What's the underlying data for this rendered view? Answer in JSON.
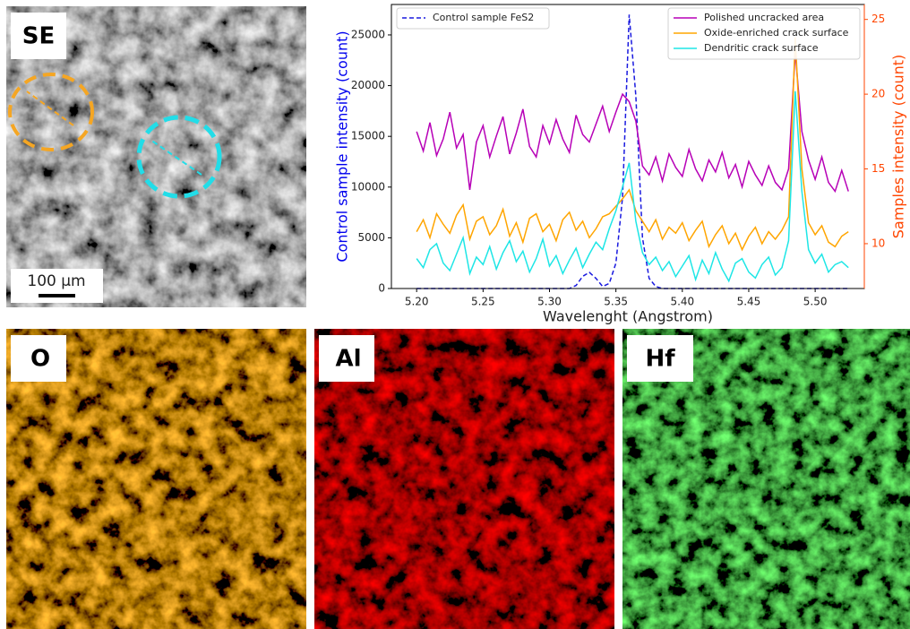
{
  "images": [
    {
      "label": "SE",
      "scale_bar": "100 µm"
    },
    {
      "label": "O"
    },
    {
      "label": "Al"
    },
    {
      "label": "Hf"
    }
  ],
  "chart_data": {
    "type": "line",
    "xlabel": "Wavelenght (Angstrom)",
    "ylabel": "Control sample intensity (count)",
    "y2label": "Samples intensity (count)",
    "y_axis_color": "#0000ee",
    "y2_axis_color": "#ff4500",
    "xlim": [
      5.181,
      5.537
    ],
    "ylim": [
      0,
      28000
    ],
    "y2lim": [
      7,
      26
    ],
    "xticks": [
      {
        "value": 5.2,
        "label": "5.20"
      },
      5.25,
      {
        "value": 5.3,
        "label": "5.30"
      },
      5.35,
      {
        "value": 5.4,
        "label": "5.40"
      },
      5.45,
      {
        "value": 5.5,
        "label": "5.50"
      }
    ],
    "yticks": [
      0,
      5000,
      10000,
      15000,
      20000,
      25000
    ],
    "y2ticks": [
      10,
      15,
      20,
      25
    ],
    "x": [
      5.2,
      5.205,
      5.21,
      5.215,
      5.22,
      5.225,
      5.23,
      5.235,
      5.24,
      5.245,
      5.25,
      5.255,
      5.26,
      5.265,
      5.27,
      5.275,
      5.28,
      5.285,
      5.29,
      5.295,
      5.3,
      5.305,
      5.31,
      5.315,
      5.32,
      5.325,
      5.33,
      5.335,
      5.34,
      5.345,
      5.35,
      5.355,
      5.36,
      5.365,
      5.37,
      5.375,
      5.38,
      5.385,
      5.39,
      5.395,
      5.4,
      5.405,
      5.41,
      5.415,
      5.42,
      5.425,
      5.43,
      5.435,
      5.44,
      5.445,
      5.45,
      5.455,
      5.46,
      5.465,
      5.47,
      5.475,
      5.48,
      5.485,
      5.49,
      5.495,
      5.5,
      5.505,
      5.51,
      5.515,
      5.52,
      5.525
    ],
    "series": [
      {
        "name": "Control sample FeS2",
        "color": "#1a1adf",
        "dashed": true,
        "values": [
          0,
          0,
          0,
          0,
          0,
          0,
          0,
          0,
          0,
          0,
          0,
          0,
          0,
          0,
          0,
          0,
          0,
          0,
          0,
          0,
          0,
          0,
          0,
          0,
          300,
          1200,
          1600,
          1000,
          200,
          500,
          2500,
          9000,
          27000,
          19000,
          5000,
          1000,
          200,
          0,
          0,
          0,
          0,
          0,
          0,
          0,
          0,
          0,
          0,
          0,
          0,
          0,
          0,
          0,
          0,
          0,
          0,
          0,
          0,
          0,
          0,
          0,
          0,
          0,
          0,
          0,
          0,
          0
        ]
      },
      {
        "name": "Polished uncracked area",
        "color": "#b700b7",
        "axis": "y2",
        "values": [
          17.5,
          16.2,
          18.1,
          15.9,
          17.0,
          18.8,
          16.4,
          17.3,
          13.6,
          16.8,
          17.9,
          15.8,
          17.2,
          18.5,
          16.0,
          17.4,
          19.0,
          16.5,
          15.8,
          17.9,
          16.7,
          18.3,
          17.0,
          16.1,
          18.6,
          17.3,
          16.8,
          18.0,
          19.2,
          17.5,
          18.8,
          20.0,
          19.5,
          18.2,
          15.2,
          14.6,
          15.8,
          14.2,
          16.0,
          15.1,
          14.5,
          16.3,
          15.0,
          14.2,
          15.6,
          14.8,
          16.1,
          14.4,
          15.3,
          13.8,
          15.5,
          14.6,
          13.9,
          15.2,
          14.1,
          13.6,
          15.0,
          22.8,
          17.5,
          15.6,
          14.3,
          15.8,
          14.1,
          13.5,
          14.9,
          13.5
        ]
      },
      {
        "name": "Oxide-enriched crack surface",
        "color": "#ffa500",
        "axis": "y2",
        "values": [
          10.8,
          11.6,
          10.4,
          12.0,
          11.3,
          10.7,
          11.9,
          12.6,
          10.3,
          11.5,
          11.8,
          10.6,
          11.2,
          12.3,
          10.5,
          11.4,
          10.1,
          11.7,
          12.0,
          10.8,
          11.3,
          10.2,
          11.6,
          12.1,
          10.9,
          11.5,
          10.4,
          11.0,
          11.8,
          12.0,
          12.5,
          13.0,
          13.6,
          12.2,
          11.5,
          10.8,
          11.6,
          10.3,
          11.1,
          10.7,
          11.4,
          10.2,
          10.9,
          11.5,
          9.8,
          10.6,
          11.2,
          10.0,
          10.7,
          9.6,
          10.5,
          11.1,
          10.0,
          10.8,
          10.3,
          10.9,
          11.8,
          23.8,
          15.0,
          11.4,
          10.6,
          11.2,
          10.1,
          9.8,
          10.5,
          10.8
        ]
      },
      {
        "name": "Dendritic crack surface",
        "color": "#1ee6e6",
        "axis": "y2",
        "values": [
          9.0,
          8.4,
          9.6,
          10.0,
          8.7,
          8.2,
          9.3,
          10.4,
          8.0,
          9.1,
          8.6,
          9.8,
          8.3,
          9.4,
          10.2,
          8.8,
          9.5,
          8.1,
          9.0,
          10.3,
          8.5,
          9.2,
          8.0,
          8.9,
          9.7,
          8.4,
          9.3,
          10.1,
          9.6,
          11.0,
          12.2,
          13.8,
          15.4,
          11.5,
          9.4,
          8.6,
          9.1,
          8.2,
          8.8,
          7.8,
          8.5,
          9.2,
          7.6,
          8.9,
          8.0,
          9.4,
          8.3,
          7.5,
          8.7,
          9.0,
          8.1,
          7.7,
          8.6,
          9.1,
          7.9,
          8.4,
          10.2,
          20.2,
          13.5,
          9.6,
          8.7,
          9.3,
          8.1,
          8.6,
          8.8,
          8.4
        ]
      }
    ]
  }
}
